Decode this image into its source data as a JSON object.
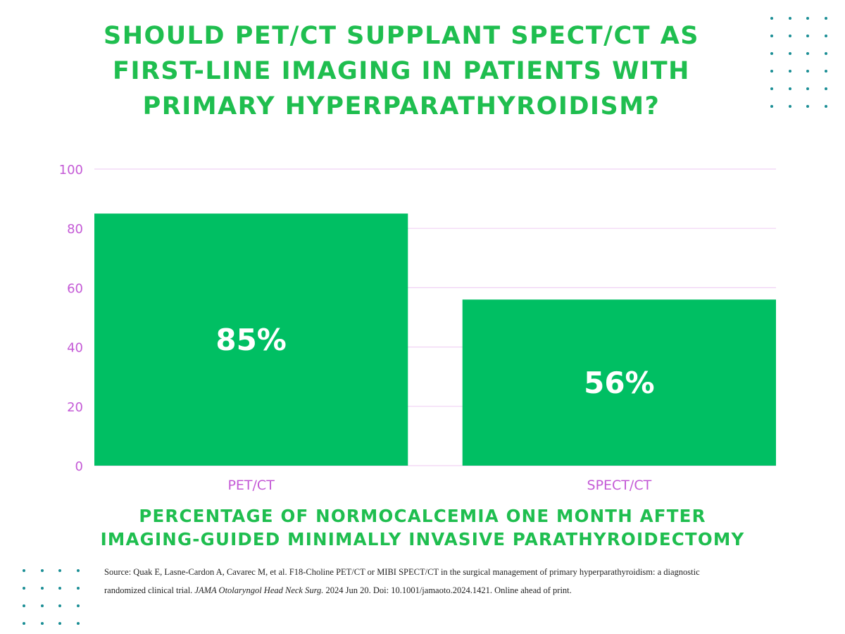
{
  "title_lines": [
    "SHOULD PET/CT SUPPLANT SPECT/CT AS",
    "FIRST-LINE IMAGING IN PATIENTS WITH",
    "PRIMARY HYPERPARATHYROIDISM?"
  ],
  "chart_data": {
    "type": "bar",
    "categories": [
      "PET/CT",
      "SPECT/CT"
    ],
    "values": [
      85,
      56
    ],
    "data_labels": [
      "85%",
      "56%"
    ],
    "ylim": [
      0,
      100
    ],
    "yticks": [
      0,
      20,
      40,
      60,
      80,
      100
    ],
    "grid": true,
    "legend": "none",
    "xlabel": "",
    "ylabel": ""
  },
  "subtitle_lines": [
    "PERCENTAGE OF NORMOCALCEMIA ONE MONTH AFTER",
    "IMAGING-GUIDED MINIMALLY INVASIVE PARATHYROIDECTOMY"
  ],
  "source": {
    "line1": "Source: Quak E, Lasne-Cardon A, Cavarec M, et al. F18-Choline PET/CT or MIBI SPECT/CT in the surgical management of primary hyperparathyroidism: a diagnostic",
    "line2_pre": "randomized clinical trial. ",
    "journal": "JAMA Otolaryngol Head Neck Surg.",
    "line2_post": " 2024 Jun 20. Doi: 10.1001/jamaoto.2024.1421. Online ahead of print."
  },
  "colors": {
    "bar": "#00bf63",
    "title": "#1fbe4f",
    "axis_text": "#c45ad6",
    "grid": "#f0d2f4",
    "dots": "#1a8e95"
  },
  "decorations": {
    "dot_pattern_icon": "dot-grid"
  }
}
